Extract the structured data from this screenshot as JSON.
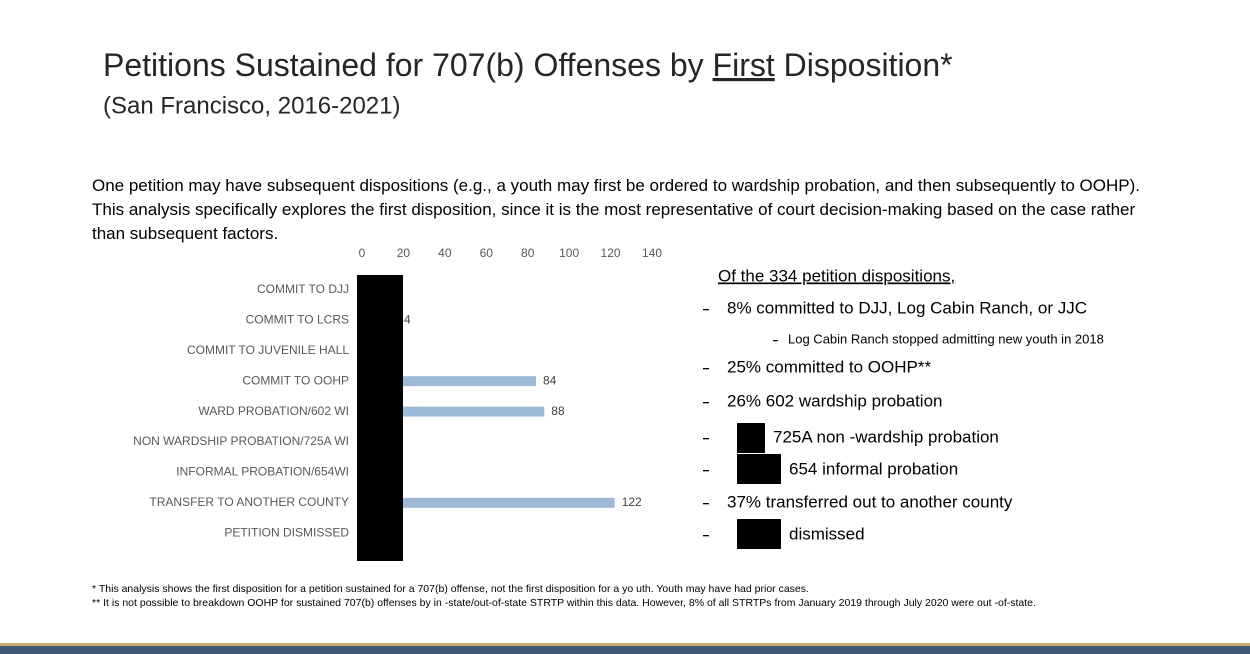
{
  "slide": {
    "title_before": "Petitions Sustained for 707(b) Offenses by ",
    "title_emphasis": "First",
    "title_after": " Disposition*",
    "subtitle": "(San Francisco, 2016-2021)",
    "intro": "One petition may have subsequent dispositions (e.g., a youth may first be ordered to wardship probation, and then subsequently to OOHP). This analysis specifically explores the first disposition, since it is the most representative of court decision-making based on the case rather than subsequent factors.",
    "summary_heading": "Of the 334 petition dispositions,",
    "summary_items": [
      {
        "text": "8% committed to DJJ, Log Cabin Ranch, or JJC",
        "note": "Log Cabin Ranch stopped admitting new youth in 2018"
      },
      {
        "text": "25% committed to OOHP**"
      },
      {
        "text": "26% 602 wardship probation"
      },
      {
        "text": "725A non -wardship probation"
      },
      {
        "text": "654 informal probation"
      },
      {
        "text": "37% transferred out to another county"
      },
      {
        "text": "dismissed"
      }
    ],
    "footnotes": [
      "* This analysis shows the first disposition for a petition sustained for a 707(b) offense, not the first disposition for a yo      uth. Youth may have had prior cases.",
      "** It is not possible to breakdown OOHP for sustained 707(b) offenses by in     -state/out-of-state STRTP within this data. However,  8% of all STRTPs from January 2019 through July 2020 were out -of-state."
    ]
  },
  "chart_data": {
    "type": "bar",
    "orientation": "horizontal",
    "categories": [
      "COMMIT TO DJJ",
      "COMMIT TO LCRS",
      "COMMIT TO JUVENILE HALL",
      "COMMIT TO OOHP",
      "WARD PROBATION/602 WI",
      "NON WARDSHIP PROBATION/725A WI",
      "INFORMAL PROBATION/654WI",
      "TRANSFER TO ANOTHER COUNTY",
      "PETITION DISMISSED"
    ],
    "values": [
      null,
      4,
      null,
      84,
      88,
      null,
      null,
      122,
      null
    ],
    "color": "#9dbbd8",
    "xlim": [
      0,
      140
    ],
    "xticks": [
      0,
      20,
      40,
      60,
      80,
      100,
      120,
      140
    ],
    "grid": false
  }
}
